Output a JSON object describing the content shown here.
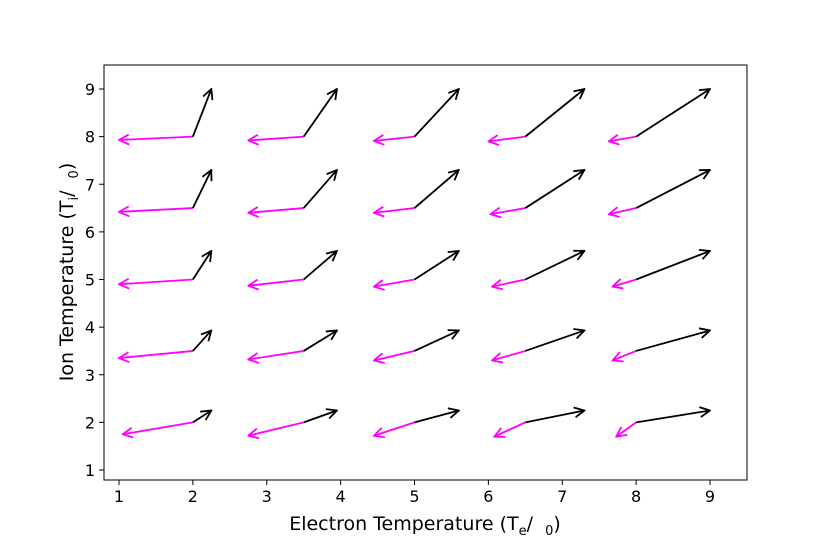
{
  "chart_data": {
    "type": "vector_field",
    "title": "",
    "xlabel": "Electron Temperature (Te/  0)",
    "ylabel": "Ion Temperature (Ti/  0)",
    "xlabel_parts": {
      "main": "Electron Temperature (T",
      "sub": "e",
      "rest": "/  ",
      "sub2": "0",
      "end": ")"
    },
    "ylabel_parts": {
      "main": "Ion Temperature (T",
      "sub": "i",
      "rest": "/  ",
      "sub2": "0",
      "end": ")"
    },
    "xlim": [
      0.8,
      9.5
    ],
    "ylim": [
      0.8,
      9.5
    ],
    "xticks": [
      1,
      2,
      3,
      4,
      5,
      6,
      7,
      8,
      9
    ],
    "yticks": [
      1,
      2,
      3,
      4,
      5,
      6,
      7,
      8,
      9
    ],
    "grid": false,
    "colors": {
      "series_a": "#ff00ff",
      "series_b": "#000000",
      "axes": "#000000"
    },
    "origins_x": [
      2.0,
      3.5,
      5.0,
      6.5,
      8.0
    ],
    "origins_y": [
      2.0,
      3.5,
      5.0,
      6.5,
      8.0
    ],
    "series_a_tips": [
      [
        [
          1.05,
          1.75
        ],
        [
          2.75,
          1.72
        ],
        [
          4.45,
          1.72
        ],
        [
          6.08,
          1.7
        ],
        [
          7.73,
          1.7
        ]
      ],
      [
        [
          1.0,
          3.35
        ],
        [
          2.75,
          3.32
        ],
        [
          4.45,
          3.3
        ],
        [
          6.05,
          3.3
        ],
        [
          7.68,
          3.3
        ]
      ],
      [
        [
          1.0,
          4.9
        ],
        [
          2.75,
          4.87
        ],
        [
          4.45,
          4.85
        ],
        [
          6.05,
          4.85
        ],
        [
          7.68,
          4.85
        ]
      ],
      [
        [
          1.0,
          6.42
        ],
        [
          2.75,
          6.4
        ],
        [
          4.45,
          6.4
        ],
        [
          6.03,
          6.37
        ],
        [
          7.63,
          6.37
        ]
      ],
      [
        [
          1.0,
          7.93
        ],
        [
          2.75,
          7.92
        ],
        [
          4.45,
          7.91
        ],
        [
          6.0,
          7.9
        ],
        [
          7.63,
          7.9
        ]
      ]
    ],
    "series_b_tips": [
      [
        [
          2.25,
          2.25
        ],
        [
          3.95,
          2.25
        ],
        [
          5.6,
          2.25
        ],
        [
          7.3,
          2.25
        ],
        [
          9.0,
          2.25
        ]
      ],
      [
        [
          2.25,
          3.93
        ],
        [
          3.95,
          3.93
        ],
        [
          5.6,
          3.93
        ],
        [
          7.3,
          3.93
        ],
        [
          9.0,
          3.93
        ]
      ],
      [
        [
          2.25,
          5.6
        ],
        [
          3.95,
          5.6
        ],
        [
          5.6,
          5.6
        ],
        [
          7.3,
          5.6
        ],
        [
          9.0,
          5.6
        ]
      ],
      [
        [
          2.25,
          7.3
        ],
        [
          3.95,
          7.3
        ],
        [
          5.6,
          7.3
        ],
        [
          7.3,
          7.3
        ],
        [
          9.0,
          7.3
        ]
      ],
      [
        [
          2.25,
          9.0
        ],
        [
          3.95,
          9.0
        ],
        [
          5.6,
          9.0
        ],
        [
          7.3,
          9.0
        ],
        [
          9.0,
          9.0
        ]
      ]
    ]
  }
}
